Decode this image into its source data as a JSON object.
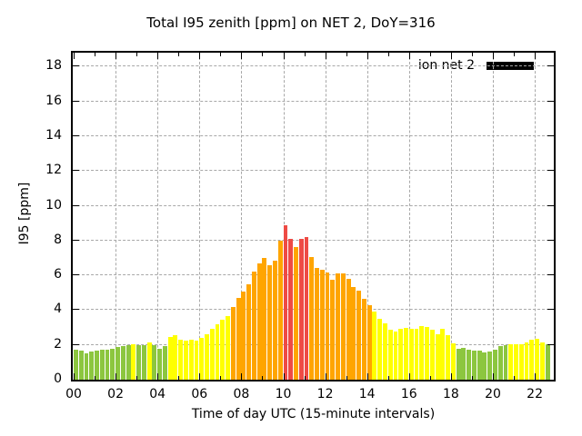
{
  "legend": {
    "label": "ion net 2",
    "swatch_color": "#000000"
  },
  "chart_data": {
    "type": "bar",
    "title": "Total I95 zenith [ppm] on NET 2, DoY=316",
    "xlabel": "Time of day UTC (15-minute intervals)",
    "ylabel": "I95 [ppm]",
    "ylim": [
      0,
      18.8
    ],
    "yticks": [
      0,
      2,
      4,
      6,
      8,
      10,
      12,
      14,
      16,
      18
    ],
    "xticks": [
      "00",
      "02",
      "04",
      "06",
      "08",
      "10",
      "12",
      "14",
      "16",
      "18",
      "20",
      "22"
    ],
    "xtick_hours": [
      0,
      2,
      4,
      6,
      8,
      10,
      12,
      14,
      16,
      18,
      20,
      22
    ],
    "minor_xtick_hours": [
      1,
      3,
      5,
      7,
      9,
      11,
      13,
      15,
      17,
      19,
      21
    ],
    "interval_minutes": 15,
    "grid": true,
    "legend_position": "top-right-inside",
    "colors": {
      "green": "#8CC63F",
      "yellow": "#FFFF00",
      "orange": "#FFA500",
      "red": "#EE4B45"
    },
    "bars": [
      {
        "t": "00:00",
        "v": 1.75,
        "c": "green"
      },
      {
        "t": "00:15",
        "v": 1.65,
        "c": "green"
      },
      {
        "t": "00:30",
        "v": 1.5,
        "c": "green"
      },
      {
        "t": "00:45",
        "v": 1.6,
        "c": "green"
      },
      {
        "t": "01:00",
        "v": 1.65,
        "c": "green"
      },
      {
        "t": "01:15",
        "v": 1.7,
        "c": "green"
      },
      {
        "t": "01:30",
        "v": 1.75,
        "c": "green"
      },
      {
        "t": "01:45",
        "v": 1.8,
        "c": "green"
      },
      {
        "t": "02:00",
        "v": 1.9,
        "c": "green"
      },
      {
        "t": "02:15",
        "v": 1.95,
        "c": "green"
      },
      {
        "t": "02:30",
        "v": 2.0,
        "c": "green"
      },
      {
        "t": "02:45",
        "v": 2.05,
        "c": "yellow"
      },
      {
        "t": "03:00",
        "v": 2.0,
        "c": "green"
      },
      {
        "t": "03:15",
        "v": 2.0,
        "c": "green"
      },
      {
        "t": "03:30",
        "v": 2.15,
        "c": "yellow"
      },
      {
        "t": "03:45",
        "v": 2.0,
        "c": "green"
      },
      {
        "t": "04:00",
        "v": 1.8,
        "c": "green"
      },
      {
        "t": "04:15",
        "v": 1.95,
        "c": "green"
      },
      {
        "t": "04:30",
        "v": 2.45,
        "c": "yellow"
      },
      {
        "t": "04:45",
        "v": 2.55,
        "c": "yellow"
      },
      {
        "t": "05:00",
        "v": 2.3,
        "c": "yellow"
      },
      {
        "t": "05:15",
        "v": 2.25,
        "c": "yellow"
      },
      {
        "t": "05:30",
        "v": 2.3,
        "c": "yellow"
      },
      {
        "t": "05:45",
        "v": 2.25,
        "c": "yellow"
      },
      {
        "t": "06:00",
        "v": 2.4,
        "c": "yellow"
      },
      {
        "t": "06:15",
        "v": 2.6,
        "c": "yellow"
      },
      {
        "t": "06:30",
        "v": 2.9,
        "c": "yellow"
      },
      {
        "t": "06:45",
        "v": 3.2,
        "c": "yellow"
      },
      {
        "t": "07:00",
        "v": 3.45,
        "c": "yellow"
      },
      {
        "t": "07:15",
        "v": 3.65,
        "c": "yellow"
      },
      {
        "t": "07:30",
        "v": 4.2,
        "c": "orange"
      },
      {
        "t": "07:45",
        "v": 4.7,
        "c": "orange"
      },
      {
        "t": "08:00",
        "v": 5.05,
        "c": "orange"
      },
      {
        "t": "08:15",
        "v": 5.5,
        "c": "orange"
      },
      {
        "t": "08:30",
        "v": 6.2,
        "c": "orange"
      },
      {
        "t": "08:45",
        "v": 6.7,
        "c": "orange"
      },
      {
        "t": "09:00",
        "v": 7.0,
        "c": "orange"
      },
      {
        "t": "09:15",
        "v": 6.6,
        "c": "orange"
      },
      {
        "t": "09:30",
        "v": 6.85,
        "c": "orange"
      },
      {
        "t": "09:45",
        "v": 8.0,
        "c": "orange"
      },
      {
        "t": "10:00",
        "v": 8.9,
        "c": "red"
      },
      {
        "t": "10:15",
        "v": 8.1,
        "c": "red"
      },
      {
        "t": "10:30",
        "v": 7.6,
        "c": "orange"
      },
      {
        "t": "10:45",
        "v": 8.1,
        "c": "red"
      },
      {
        "t": "11:00",
        "v": 8.2,
        "c": "red"
      },
      {
        "t": "11:15",
        "v": 7.05,
        "c": "orange"
      },
      {
        "t": "11:30",
        "v": 6.4,
        "c": "orange"
      },
      {
        "t": "11:45",
        "v": 6.3,
        "c": "orange"
      },
      {
        "t": "12:00",
        "v": 6.15,
        "c": "orange"
      },
      {
        "t": "12:15",
        "v": 5.75,
        "c": "orange"
      },
      {
        "t": "12:30",
        "v": 6.1,
        "c": "orange"
      },
      {
        "t": "12:45",
        "v": 6.1,
        "c": "orange"
      },
      {
        "t": "13:00",
        "v": 5.8,
        "c": "orange"
      },
      {
        "t": "13:15",
        "v": 5.35,
        "c": "orange"
      },
      {
        "t": "13:30",
        "v": 5.1,
        "c": "orange"
      },
      {
        "t": "13:45",
        "v": 4.65,
        "c": "orange"
      },
      {
        "t": "14:00",
        "v": 4.3,
        "c": "orange"
      },
      {
        "t": "14:15",
        "v": 3.9,
        "c": "yellow"
      },
      {
        "t": "14:30",
        "v": 3.5,
        "c": "yellow"
      },
      {
        "t": "14:45",
        "v": 3.25,
        "c": "yellow"
      },
      {
        "t": "15:00",
        "v": 2.85,
        "c": "yellow"
      },
      {
        "t": "15:15",
        "v": 2.75,
        "c": "yellow"
      },
      {
        "t": "15:30",
        "v": 2.9,
        "c": "yellow"
      },
      {
        "t": "15:45",
        "v": 3.0,
        "c": "yellow"
      },
      {
        "t": "16:00",
        "v": 2.9,
        "c": "yellow"
      },
      {
        "t": "16:15",
        "v": 2.95,
        "c": "yellow"
      },
      {
        "t": "16:30",
        "v": 3.1,
        "c": "yellow"
      },
      {
        "t": "16:45",
        "v": 3.05,
        "c": "yellow"
      },
      {
        "t": "17:00",
        "v": 2.85,
        "c": "yellow"
      },
      {
        "t": "17:15",
        "v": 2.6,
        "c": "yellow"
      },
      {
        "t": "17:30",
        "v": 2.9,
        "c": "yellow"
      },
      {
        "t": "17:45",
        "v": 2.55,
        "c": "yellow"
      },
      {
        "t": "18:00",
        "v": 2.1,
        "c": "yellow"
      },
      {
        "t": "18:15",
        "v": 1.8,
        "c": "green"
      },
      {
        "t": "18:30",
        "v": 1.85,
        "c": "green"
      },
      {
        "t": "18:45",
        "v": 1.75,
        "c": "green"
      },
      {
        "t": "19:00",
        "v": 1.65,
        "c": "green"
      },
      {
        "t": "19:15",
        "v": 1.65,
        "c": "green"
      },
      {
        "t": "19:30",
        "v": 1.55,
        "c": "green"
      },
      {
        "t": "19:45",
        "v": 1.6,
        "c": "green"
      },
      {
        "t": "20:00",
        "v": 1.7,
        "c": "green"
      },
      {
        "t": "20:15",
        "v": 1.95,
        "c": "green"
      },
      {
        "t": "20:30",
        "v": 2.0,
        "c": "green"
      },
      {
        "t": "20:45",
        "v": 2.05,
        "c": "yellow"
      },
      {
        "t": "21:00",
        "v": 2.05,
        "c": "yellow"
      },
      {
        "t": "21:15",
        "v": 2.05,
        "c": "yellow"
      },
      {
        "t": "21:30",
        "v": 2.15,
        "c": "yellow"
      },
      {
        "t": "21:45",
        "v": 2.3,
        "c": "yellow"
      },
      {
        "t": "22:00",
        "v": 2.35,
        "c": "yellow"
      },
      {
        "t": "22:15",
        "v": 2.15,
        "c": "yellow"
      },
      {
        "t": "22:30",
        "v": 2.05,
        "c": "green"
      }
    ]
  }
}
